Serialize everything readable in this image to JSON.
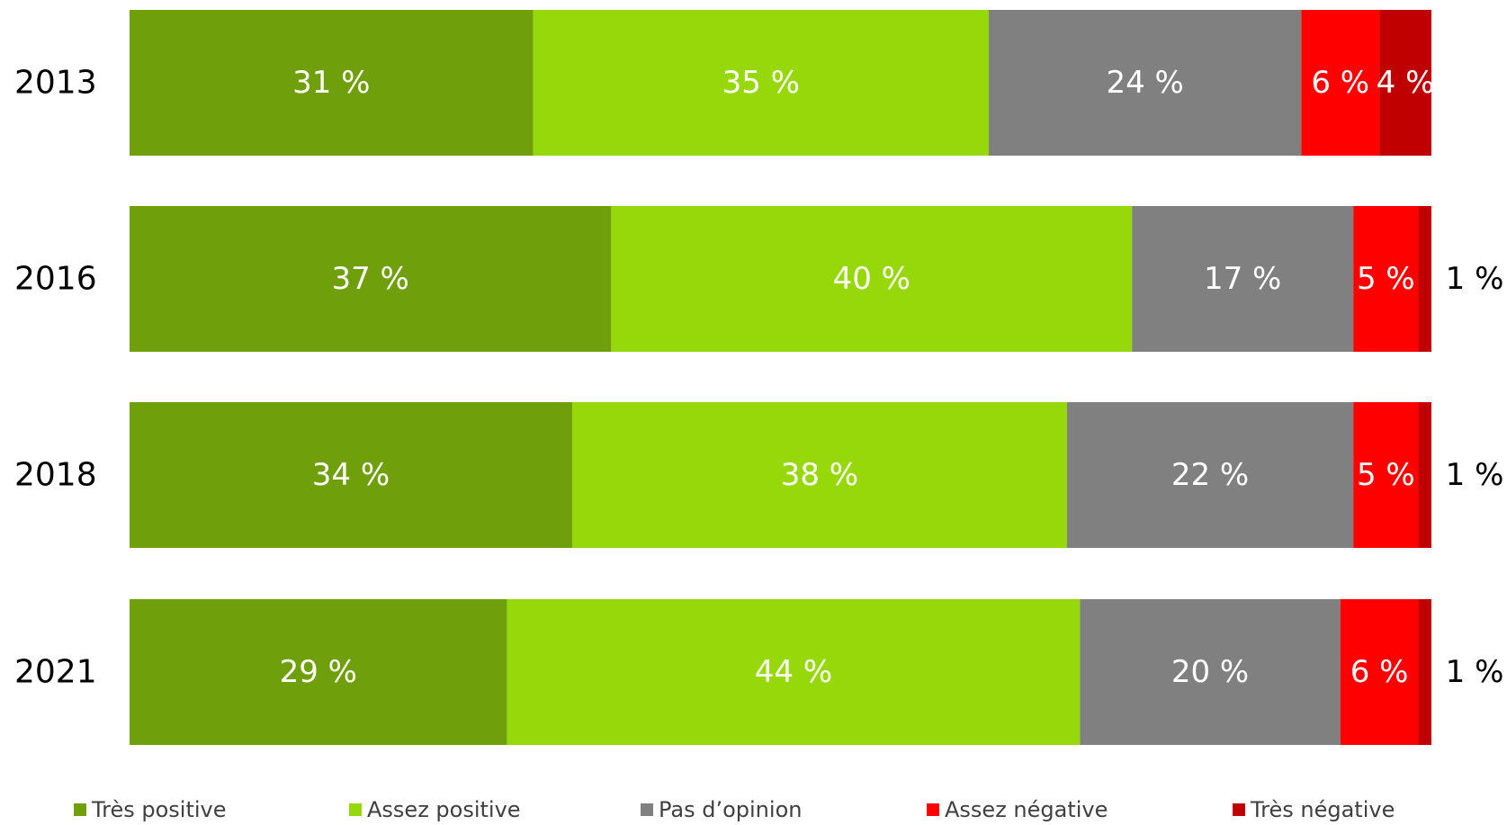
{
  "chart_data": {
    "type": "bar",
    "orientation": "horizontal",
    "stacked": true,
    "categories": [
      "2013",
      "2016",
      "2018",
      "2021"
    ],
    "series": [
      {
        "name": "Très positive",
        "color": "#6f9f0a",
        "values": [
          31,
          37,
          34,
          29
        ],
        "labels": [
          "31 %",
          "37 %",
          "34 %",
          "29 %"
        ]
      },
      {
        "name": "Assez positive",
        "color": "#97d80a",
        "values": [
          35,
          40,
          38,
          44
        ],
        "labels": [
          "35 %",
          "40 %",
          "38 %",
          "44 %"
        ]
      },
      {
        "name": "Pas d’opinion",
        "color": "#808080",
        "values": [
          24,
          17,
          22,
          20
        ],
        "labels": [
          "24 %",
          "17 %",
          "22 %",
          "20 %"
        ]
      },
      {
        "name": "Assez négative",
        "color": "#ff0000",
        "values": [
          6,
          5,
          5,
          6
        ],
        "labels": [
          "6 %",
          "5 %",
          "5 %",
          "6 %"
        ]
      },
      {
        "name": "Très négative",
        "color": "#c00000",
        "values": [
          4,
          1,
          1,
          1
        ],
        "labels": [
          "4 %",
          "1 %",
          "1 %",
          "1 %"
        ]
      }
    ],
    "xlim": [
      0,
      100
    ],
    "grid": false,
    "legend": "bottom"
  }
}
